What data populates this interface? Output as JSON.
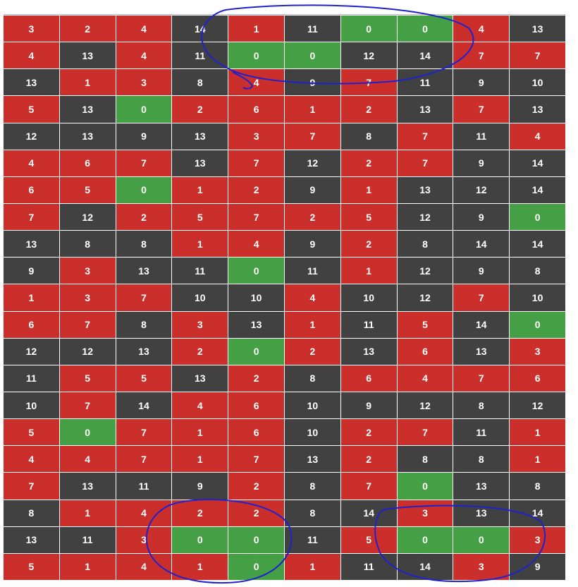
{
  "grid": {
    "cell_colors": {
      "0": "#45a045",
      "1": "#cb2f2b",
      "2": "#cb2f2b",
      "3": "#cb2f2b",
      "4": "#cb2f2b",
      "5": "#cb2f2b",
      "6": "#cb2f2b",
      "7": "#cb2f2b",
      "8": "#414141",
      "9": "#414141",
      "10": "#414141",
      "11": "#414141",
      "12": "#414141",
      "13": "#414141",
      "14": "#414141"
    },
    "rows": [
      [
        3,
        2,
        4,
        14,
        1,
        11,
        0,
        0,
        4,
        13
      ],
      [
        4,
        13,
        4,
        11,
        0,
        0,
        12,
        14,
        7,
        7
      ],
      [
        13,
        1,
        3,
        8,
        4,
        9,
        7,
        11,
        9,
        10
      ],
      [
        5,
        13,
        0,
        2,
        6,
        1,
        2,
        13,
        7,
        13
      ],
      [
        12,
        13,
        9,
        13,
        3,
        7,
        8,
        7,
        11,
        4
      ],
      [
        4,
        6,
        7,
        13,
        7,
        12,
        2,
        7,
        9,
        14
      ],
      [
        6,
        5,
        0,
        1,
        2,
        9,
        1,
        13,
        12,
        14
      ],
      [
        7,
        12,
        2,
        5,
        7,
        2,
        5,
        12,
        9,
        0
      ],
      [
        13,
        8,
        8,
        1,
        4,
        9,
        2,
        8,
        14,
        14
      ],
      [
        9,
        3,
        13,
        11,
        0,
        11,
        1,
        12,
        9,
        8
      ],
      [
        1,
        3,
        7,
        10,
        10,
        4,
        10,
        12,
        7,
        10
      ],
      [
        6,
        7,
        8,
        3,
        13,
        1,
        11,
        5,
        14,
        0
      ],
      [
        12,
        12,
        13,
        2,
        0,
        2,
        13,
        6,
        13,
        3
      ],
      [
        11,
        5,
        5,
        13,
        2,
        8,
        6,
        4,
        7,
        6
      ],
      [
        10,
        7,
        14,
        4,
        6,
        10,
        9,
        12,
        8,
        12
      ],
      [
        5,
        0,
        7,
        1,
        6,
        10,
        2,
        7,
        11,
        1
      ],
      [
        4,
        4,
        7,
        1,
        7,
        13,
        2,
        8,
        8,
        1
      ],
      [
        7,
        13,
        11,
        9,
        2,
        8,
        7,
        0,
        13,
        8
      ],
      [
        8,
        1,
        4,
        2,
        2,
        8,
        14,
        3,
        13,
        14
      ],
      [
        13,
        11,
        3,
        0,
        0,
        11,
        5,
        0,
        0,
        3
      ],
      [
        5,
        1,
        4,
        1,
        0,
        1,
        11,
        14,
        3,
        9
      ]
    ]
  }
}
